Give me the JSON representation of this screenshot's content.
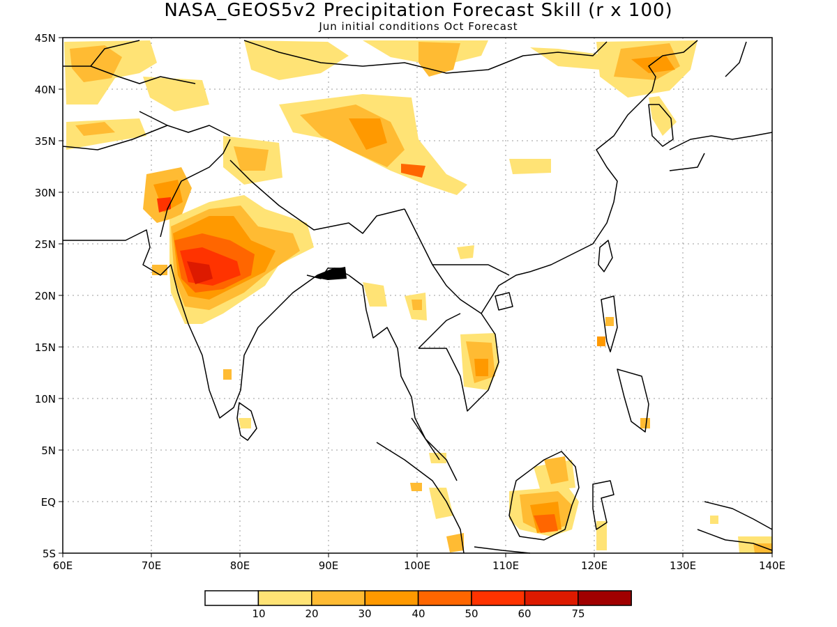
{
  "title": "NASA_GEOS5v2 Precipitation Forecast Skill (r x 100)",
  "subtitle": "Jun initial conditions  Oct Forecast",
  "lat_labels": [
    "45N",
    "40N",
    "35N",
    "30N",
    "25N",
    "20N",
    "15N",
    "10N",
    "5N",
    "EQ",
    "5S"
  ],
  "lon_labels": [
    "60E",
    "70E",
    "80E",
    "90E",
    "100E",
    "110E",
    "120E",
    "130E",
    "140E"
  ],
  "colorbar": {
    "colors": [
      "#ffffff",
      "#ffe375",
      "#ffbb33",
      "#ff9900",
      "#ff6600",
      "#ff3300",
      "#dd1a00",
      "#a00000"
    ],
    "labels": [
      "10",
      "20",
      "30",
      "40",
      "50",
      "60",
      "75"
    ]
  },
  "map_extent": {
    "lon": [
      60,
      140
    ],
    "lat": [
      -5,
      45
    ]
  }
}
